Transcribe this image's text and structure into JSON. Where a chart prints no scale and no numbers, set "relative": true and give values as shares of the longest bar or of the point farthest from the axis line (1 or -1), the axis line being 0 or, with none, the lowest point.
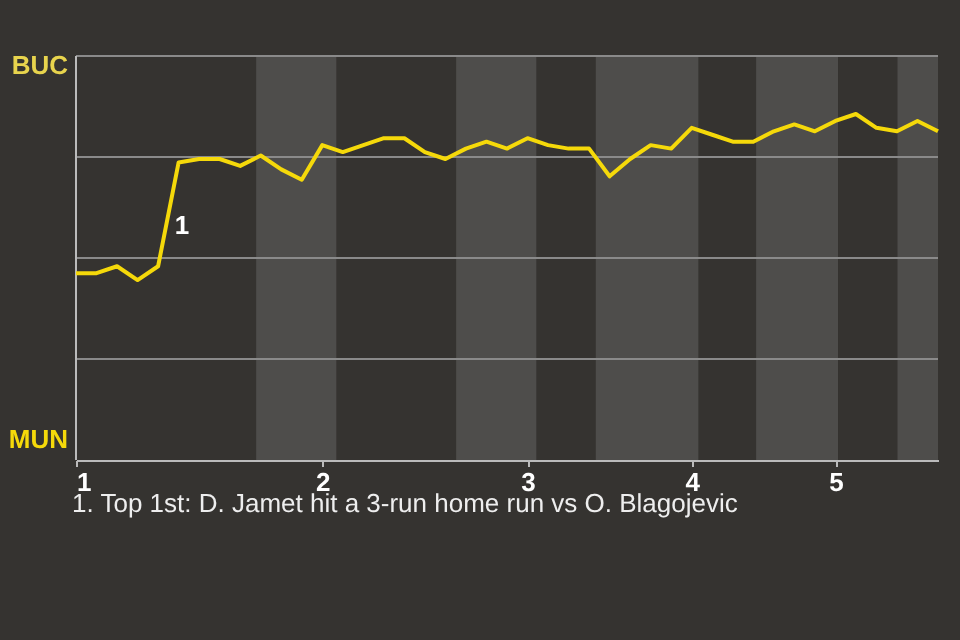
{
  "chart_data": {
    "type": "line",
    "relative": true,
    "categories": [
      "1",
      null,
      null,
      null,
      null,
      null,
      null,
      null,
      null,
      null,
      null,
      null,
      "2",
      null,
      null,
      null,
      null,
      null,
      null,
      null,
      null,
      null,
      "3",
      null,
      null,
      null,
      null,
      null,
      null,
      null,
      "4",
      null,
      null,
      null,
      null,
      null,
      null,
      "5",
      null,
      null,
      null,
      null,
      null
    ],
    "series": [
      {
        "color": "#f5d90a",
        "values": [
          0.54,
          0.54,
          0.56,
          0.52,
          0.56,
          0.86,
          0.87,
          0.87,
          0.85,
          0.88,
          0.84,
          0.81,
          0.91,
          0.89,
          0.91,
          0.93,
          0.93,
          0.89,
          0.87,
          0.9,
          0.92,
          0.9,
          0.93,
          0.91,
          0.9,
          0.9,
          0.82,
          0.87,
          0.91,
          0.9,
          0.96,
          0.94,
          0.92,
          0.92,
          0.95,
          0.97,
          0.95,
          0.98,
          1,
          0.96,
          0.95,
          0.98,
          0.95
        ]
      }
    ],
    "annotations": [
      "BUC",
      "MUN",
      "1",
      "1. Top 1st: D. Jamet hit a 3-run home run vs O. Blagojevic"
    ],
    "grid": "y",
    "marker": "none",
    "line_style": "solid"
  }
}
